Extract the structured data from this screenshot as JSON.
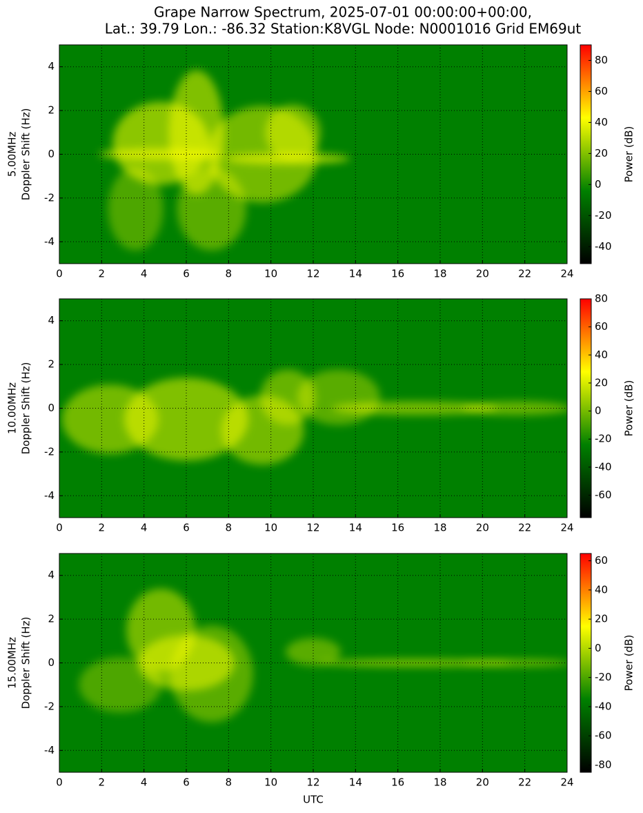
{
  "title": "Grape Narrow Spectrum, 2025-07-01 00:00:00+00:00,",
  "subtitle": "Lat.: 39.79 Lon.: -86.32 Station:K8VGL Node: N0001016 Grid EM69ut",
  "chart_data": [
    {
      "type": "spectrogram",
      "ylabel": [
        "5.00MHz",
        "Doppler Shift (Hz)"
      ],
      "xlim": [
        0,
        24
      ],
      "xticks": [
        0,
        2,
        4,
        6,
        8,
        10,
        12,
        14,
        16,
        18,
        20,
        22,
        24
      ],
      "ylim": [
        -5,
        5
      ],
      "yticks": [
        -4,
        -2,
        0,
        2,
        4
      ],
      "grid": true,
      "colorbar": {
        "label": "Power (dB)",
        "lim": [
          -51,
          90
        ],
        "ticks": [
          -40,
          -20,
          0,
          20,
          40,
          60,
          80
        ]
      },
      "colors": [
        "#000000",
        "#008000",
        "#ffff00",
        "#ff0000"
      ]
    },
    {
      "type": "spectrogram",
      "ylabel": [
        "10.00MHz",
        "Doppler Shift (Hz)"
      ],
      "xlim": [
        0,
        24
      ],
      "xticks": [
        0,
        2,
        4,
        6,
        8,
        10,
        12,
        14,
        16,
        18,
        20,
        22,
        24
      ],
      "ylim": [
        -5,
        5
      ],
      "yticks": [
        -4,
        -2,
        0,
        2,
        4
      ],
      "grid": true,
      "colorbar": {
        "label": "Power (dB)",
        "lim": [
          -76,
          80
        ],
        "ticks": [
          -60,
          -40,
          -20,
          0,
          20,
          40,
          60,
          80
        ]
      },
      "colors": [
        "#000000",
        "#008000",
        "#ffff00",
        "#ff0000"
      ]
    },
    {
      "type": "spectrogram",
      "ylabel": [
        "15.00MHz",
        "Doppler Shift (Hz)"
      ],
      "xlabel": "UTC",
      "xlim": [
        0,
        24
      ],
      "xticks": [
        0,
        2,
        4,
        6,
        8,
        10,
        12,
        14,
        16,
        18,
        20,
        22,
        24
      ],
      "ylim": [
        -5,
        5
      ],
      "yticks": [
        -4,
        -2,
        0,
        2,
        4
      ],
      "grid": true,
      "colorbar": {
        "label": "Power (dB)",
        "lim": [
          -85,
          65
        ],
        "ticks": [
          -80,
          -60,
          -40,
          -20,
          0,
          20,
          40,
          60
        ]
      },
      "colors": [
        "#000000",
        "#008000",
        "#ffff00",
        "#ff0000"
      ]
    }
  ]
}
